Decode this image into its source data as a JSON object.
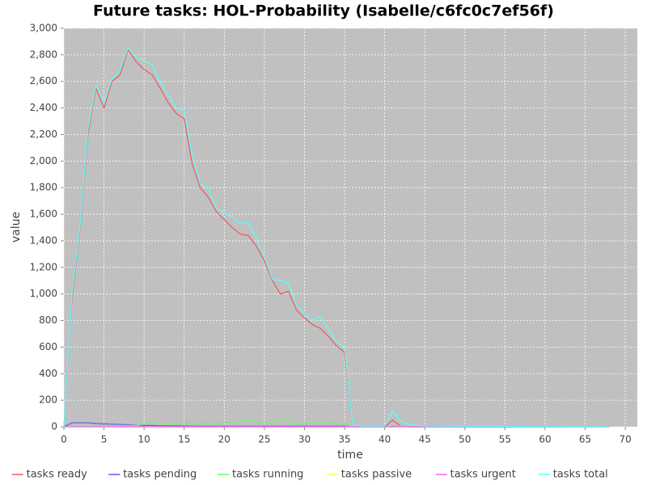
{
  "chart_data": {
    "type": "line",
    "title": "Future tasks: HOL-Probability (Isabelle/c6fc0c7ef56f)",
    "x_label": "time",
    "y_label": "value",
    "x": [
      0,
      1,
      2,
      3,
      4,
      5,
      6,
      7,
      8,
      9,
      10,
      11,
      12,
      13,
      14,
      15,
      16,
      17,
      18,
      19,
      20,
      21,
      22,
      23,
      24,
      25,
      26,
      27,
      28,
      29,
      30,
      31,
      32,
      33,
      34,
      35,
      36,
      37,
      38,
      39,
      40,
      41,
      42,
      43,
      44,
      45,
      68
    ],
    "series": [
      {
        "name": "tasks ready",
        "color": "#f05a5a",
        "values": [
          0,
          950,
          1480,
          2200,
          2550,
          2400,
          2600,
          2650,
          2840,
          2750,
          2690,
          2650,
          2550,
          2440,
          2360,
          2320,
          1980,
          1800,
          1730,
          1620,
          1560,
          1500,
          1450,
          1440,
          1360,
          1250,
          1100,
          1000,
          1020,
          880,
          820,
          770,
          740,
          680,
          610,
          560,
          10,
          0,
          0,
          0,
          0,
          50,
          5,
          0,
          0,
          0,
          0
        ]
      },
      {
        "name": "tasks pending",
        "color": "#5a5aff",
        "values": [
          0,
          30,
          30,
          30,
          25,
          22,
          20,
          18,
          15,
          12,
          10,
          10,
          8,
          8,
          6,
          6,
          5,
          5,
          5,
          5,
          5,
          5,
          5,
          5,
          5,
          5,
          5,
          5,
          5,
          5,
          5,
          5,
          5,
          5,
          5,
          5,
          0,
          0,
          0,
          0,
          0,
          5,
          5,
          0,
          0,
          0,
          0
        ]
      },
      {
        "name": "tasks running",
        "color": "#5aff5a",
        "values": [
          0,
          5,
          5,
          5,
          5,
          10,
          10,
          10,
          10,
          10,
          20,
          30,
          25,
          20,
          15,
          30,
          20,
          25,
          30,
          20,
          30,
          40,
          35,
          50,
          40,
          30,
          20,
          55,
          55,
          20,
          25,
          30,
          40,
          35,
          20,
          25,
          0,
          0,
          0,
          0,
          0,
          10,
          5,
          0,
          0,
          0,
          0
        ]
      },
      {
        "name": "tasks passive",
        "color": "#ffff5a",
        "values": [
          0,
          0,
          0,
          0,
          0,
          0,
          0,
          0,
          0,
          0,
          0,
          0,
          0,
          0,
          0,
          0,
          0,
          0,
          0,
          0,
          0,
          0,
          0,
          0,
          0,
          0,
          0,
          0,
          0,
          0,
          0,
          0,
          0,
          0,
          0,
          0,
          0,
          0,
          0,
          0,
          0,
          0,
          0,
          0,
          0,
          0,
          0
        ]
      },
      {
        "name": "tasks urgent",
        "color": "#ff5aff",
        "values": [
          0,
          0,
          0,
          0,
          0,
          0,
          0,
          0,
          0,
          0,
          0,
          0,
          0,
          0,
          0,
          0,
          0,
          0,
          0,
          0,
          0,
          0,
          0,
          0,
          0,
          0,
          0,
          0,
          0,
          0,
          0,
          0,
          0,
          0,
          0,
          0,
          0,
          0,
          0,
          0,
          0,
          0,
          0,
          0,
          0,
          0,
          0
        ]
      },
      {
        "name": "tasks total",
        "color": "#5affff",
        "values": [
          0,
          980,
          1500,
          2230,
          2570,
          2430,
          2620,
          2680,
          2850,
          2780,
          2760,
          2720,
          2600,
          2500,
          2400,
          2380,
          2040,
          1830,
          1790,
          1650,
          1610,
          1580,
          1530,
          1540,
          1420,
          1280,
          1110,
          1100,
          1080,
          920,
          850,
          800,
          830,
          730,
          640,
          600,
          10,
          5,
          5,
          5,
          5,
          120,
          40,
          20,
          10,
          5,
          0
        ]
      }
    ],
    "xlim": [
      0,
      71.5
    ],
    "ylim": [
      0,
      3000
    ],
    "xticks": [
      0,
      5,
      10,
      15,
      20,
      25,
      30,
      35,
      40,
      45,
      50,
      55,
      60,
      65,
      70
    ],
    "yticks": [
      0,
      200,
      400,
      600,
      800,
      {
        "value": 1000,
        "label": "1,000"
      },
      {
        "value": 1200,
        "label": "1,200"
      },
      {
        "value": 1400,
        "label": "1,400"
      },
      {
        "value": 1600,
        "label": "1,600"
      },
      {
        "value": 1800,
        "label": "1,800"
      },
      {
        "value": 2000,
        "label": "2,000"
      },
      {
        "value": 2200,
        "label": "2,200"
      },
      {
        "value": 2400,
        "label": "2,400"
      },
      {
        "value": 2600,
        "label": "2,600"
      },
      {
        "value": 2800,
        "label": "2,800"
      },
      {
        "value": 3000,
        "label": "3,000"
      }
    ],
    "grid": true,
    "plot_background": "#c0c0c0",
    "legend": "bottom"
  }
}
